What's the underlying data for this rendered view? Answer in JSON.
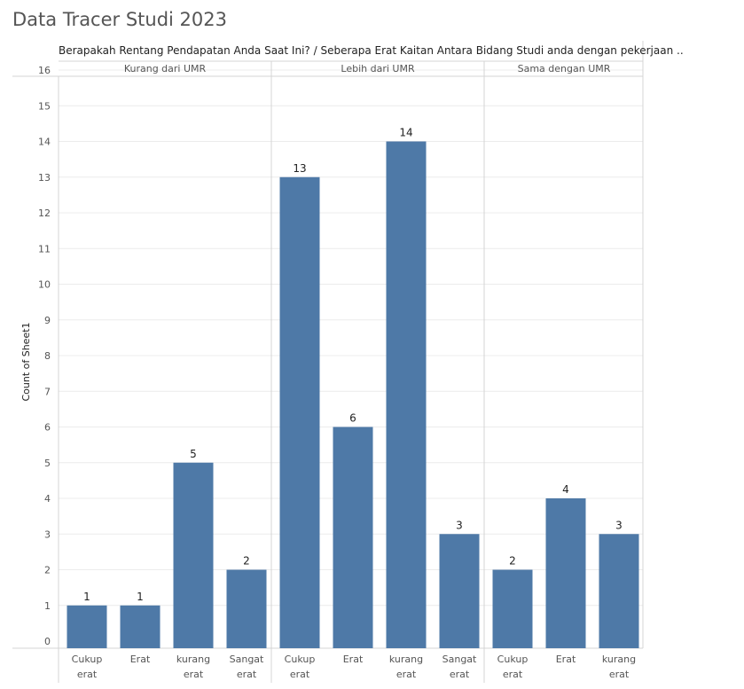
{
  "page": {
    "title": "Data Tracer Studi 2023"
  },
  "chart_data": {
    "type": "bar",
    "header": "Berapakah Rentang Pendapatan Anda Saat Ini? / Seberapa Erat Kaitan Antara Bidang Studi anda dengan pekerjaan ..",
    "ylabel": "Count of Sheet1",
    "ylim": [
      0,
      16
    ],
    "yticks": [
      "0",
      "1",
      "2",
      "3",
      "4",
      "5",
      "6",
      "7",
      "8",
      "9",
      "10",
      "11",
      "12",
      "13",
      "14",
      "15",
      "16"
    ],
    "bar_color": "#4e79a7",
    "panels": [
      {
        "name": "Kurang dari UMR",
        "categories": [
          [
            "Cukup",
            "erat"
          ],
          [
            "Erat"
          ],
          [
            "kurang",
            "erat"
          ],
          [
            "Sangat",
            "erat"
          ]
        ],
        "values": [
          1,
          1,
          5,
          2
        ]
      },
      {
        "name": "Lebih dari UMR",
        "categories": [
          [
            "Cukup",
            "erat"
          ],
          [
            "Erat"
          ],
          [
            "kurang",
            "erat"
          ],
          [
            "Sangat",
            "erat"
          ]
        ],
        "values": [
          13,
          6,
          14,
          3
        ]
      },
      {
        "name": "Sama dengan UMR",
        "categories": [
          [
            "Cukup",
            "erat"
          ],
          [
            "Erat"
          ],
          [
            "kurang",
            "erat"
          ]
        ],
        "values": [
          2,
          4,
          3
        ]
      }
    ]
  }
}
